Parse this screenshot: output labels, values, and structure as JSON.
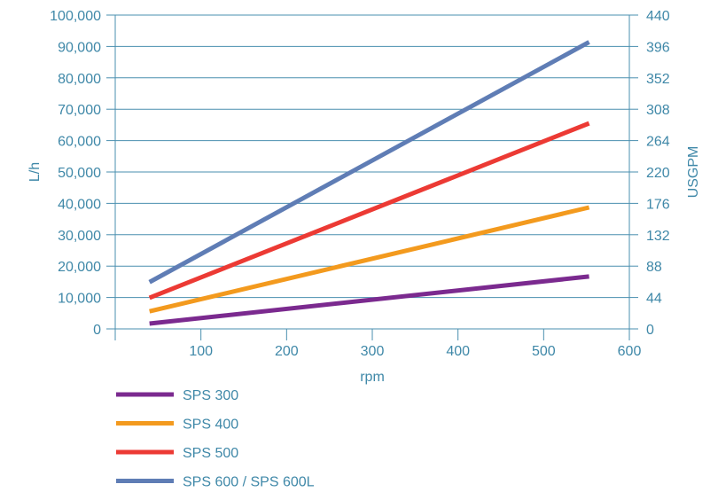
{
  "chart_data": {
    "type": "line",
    "title": "",
    "xlabel": "rpm",
    "ylabel": "L/h",
    "y2label": "USGPM",
    "xlim": [
      0,
      600
    ],
    "ylim": [
      0,
      100000
    ],
    "y2lim": [
      0,
      440
    ],
    "x_ticks": [
      {
        "value": 100,
        "label": "100"
      },
      {
        "value": 200,
        "label": "200"
      },
      {
        "value": 300,
        "label": "300"
      },
      {
        "value": 400,
        "label": "400"
      },
      {
        "value": 500,
        "label": "500"
      },
      {
        "value": 600,
        "label": "600"
      }
    ],
    "y_ticks": [
      {
        "value": 0,
        "label": "0"
      },
      {
        "value": 10000,
        "label": "10,000"
      },
      {
        "value": 20000,
        "label": "20,000"
      },
      {
        "value": 30000,
        "label": "30,000"
      },
      {
        "value": 40000,
        "label": "40,000"
      },
      {
        "value": 50000,
        "label": "50,000"
      },
      {
        "value": 60000,
        "label": "60,000"
      },
      {
        "value": 70000,
        "label": "70,000"
      },
      {
        "value": 80000,
        "label": "80,000"
      },
      {
        "value": 90000,
        "label": "90,000"
      },
      {
        "value": 100000,
        "label": "100,000"
      }
    ],
    "y2_ticks": [
      {
        "value": 0,
        "label": "0"
      },
      {
        "value": 44,
        "label": "44"
      },
      {
        "value": 88,
        "label": "88"
      },
      {
        "value": 132,
        "label": "132"
      },
      {
        "value": 176,
        "label": "176"
      },
      {
        "value": 220,
        "label": "220"
      },
      {
        "value": 264,
        "label": "264"
      },
      {
        "value": 308,
        "label": "308"
      },
      {
        "value": 352,
        "label": "352"
      },
      {
        "value": 396,
        "label": "396"
      },
      {
        "value": 440,
        "label": "440"
      }
    ],
    "grid": {
      "horizontal": true,
      "vertical": false
    },
    "legend_position": "bottom-left",
    "series": [
      {
        "name": "SPS 300",
        "color": "#7b2a8f",
        "x": [
          40,
          553
        ],
        "y": [
          1700,
          16700
        ]
      },
      {
        "name": "SPS 400",
        "color": "#f39a1e",
        "x": [
          40,
          553
        ],
        "y": [
          5600,
          38700
        ]
      },
      {
        "name": "SPS 500",
        "color": "#ec3a34",
        "x": [
          40,
          553
        ],
        "y": [
          9900,
          65500
        ]
      },
      {
        "name": "SPS 600 / SPS 600L",
        "color": "#5f7db5",
        "x": [
          40,
          553
        ],
        "y": [
          14900,
          91400
        ]
      }
    ]
  }
}
